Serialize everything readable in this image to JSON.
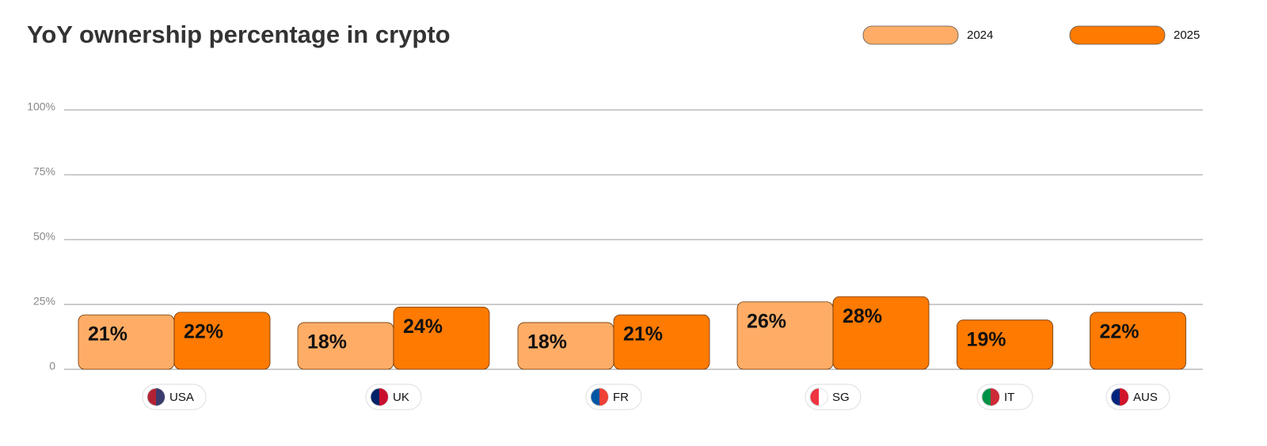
{
  "chart_data": {
    "type": "bar",
    "title": "YoY ownership percentage in crypto",
    "categories": [
      "USA",
      "UK",
      "FR",
      "SG",
      "IT",
      "AUS"
    ],
    "series": [
      {
        "name": "2024",
        "color": "#ffad66",
        "values": [
          21,
          18,
          18,
          26,
          null,
          null
        ],
        "value_labels": [
          "21%",
          "18%",
          "18%",
          "26%",
          null,
          null
        ]
      },
      {
        "name": "2025",
        "color": "#ff7a00",
        "values": [
          22,
          24,
          21,
          28,
          19,
          22
        ],
        "value_labels": [
          "22%",
          "24%",
          "21%",
          "28%",
          "19%",
          "22%"
        ]
      }
    ],
    "ylim": [
      0,
      100
    ],
    "yticks": [
      0,
      {
        "value": 25,
        "label": "25%"
      },
      {
        "value": 50,
        "label": "50%"
      },
      {
        "value": 75,
        "label": "75%"
      },
      {
        "value": 100,
        "label": "100%"
      }
    ],
    "grid": true,
    "legend": "top-right"
  }
}
